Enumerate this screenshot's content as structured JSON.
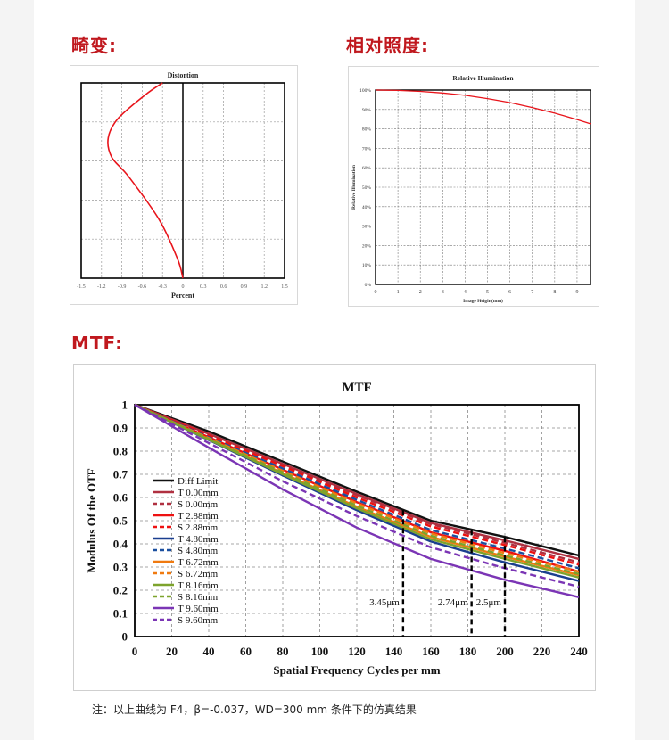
{
  "headings": {
    "distortion": "畸变:",
    "relative_illumination": "相对照度:",
    "mtf": "MTF:"
  },
  "note": "注：以上曲线为 F4，β=-0.037，WD=300 mm 条件下的仿真结果",
  "chart_data": [
    {
      "id": "distortion",
      "type": "line",
      "title": "Distortion",
      "xlabel": "Percent",
      "ylabel": "",
      "xlim": [
        -1.5,
        1.5
      ],
      "x_ticks": [
        "-1.5",
        "-1.2",
        "-0.9",
        "-0.6",
        "-0.3",
        "0",
        "0.3",
        "0.6",
        "0.9",
        "1.2",
        "1.5"
      ],
      "ylim": [
        0,
        1
      ],
      "grid": true,
      "series": [
        {
          "color": "#e8141b",
          "x": [
            0,
            -0.08,
            -0.35,
            -0.8,
            -1.05,
            -1.1,
            -0.95,
            -0.55,
            -0.3
          ],
          "y": [
            0,
            0.1,
            0.3,
            0.52,
            0.62,
            0.72,
            0.82,
            0.94,
            1.0
          ]
        }
      ]
    },
    {
      "id": "relative-illumination",
      "type": "line",
      "title": "Relative Illumination",
      "xlabel": "Image Height(mm)",
      "ylabel": "Relative Illumination",
      "xlim": [
        0,
        9.6
      ],
      "ylim": [
        0,
        100
      ],
      "x_ticks": [
        "0",
        "1",
        "2",
        "3",
        "4",
        "5",
        "6",
        "7",
        "8",
        "9"
      ],
      "y_ticks": [
        "0%",
        "10%",
        "20%",
        "30%",
        "40%",
        "50%",
        "60%",
        "70%",
        "80%",
        "90%",
        "100%"
      ],
      "grid": true,
      "series": [
        {
          "color": "#e8141b",
          "x": [
            0,
            1,
            2,
            3,
            4,
            5,
            6,
            7,
            8,
            9,
            9.6
          ],
          "y": [
            100,
            99.8,
            99.3,
            98.5,
            97.3,
            95.6,
            93.6,
            91,
            88.1,
            84.8,
            82.6
          ]
        }
      ]
    },
    {
      "id": "mtf",
      "type": "line",
      "title": "MTF",
      "xlabel": "Spatial Frequency Cycles per mm",
      "ylabel": "Modulus Of the OTF",
      "xlim": [
        0,
        240
      ],
      "ylim": [
        0,
        1
      ],
      "x_ticks": [
        "0",
        "20",
        "40",
        "60",
        "80",
        "100",
        "120",
        "140",
        "160",
        "180",
        "200",
        "220",
        "240"
      ],
      "y_ticks": [
        "0",
        "0.1",
        "0.2",
        "0.3",
        "0.4",
        "0.5",
        "0.6",
        "0.7",
        "0.8",
        "0.9",
        "1"
      ],
      "grid": true,
      "legend_position": "left",
      "x": [
        0,
        40,
        80,
        120,
        160,
        200,
        240
      ],
      "series": [
        {
          "name": "Diff Limit",
          "color": "#111111",
          "dash": false,
          "values": [
            1,
            0.885,
            0.755,
            0.625,
            0.5,
            0.43,
            0.35
          ]
        },
        {
          "name": "T 0.00mm",
          "color": "#b03040",
          "dash": false,
          "values": [
            1,
            0.875,
            0.745,
            0.615,
            0.49,
            0.415,
            0.335
          ]
        },
        {
          "name": "S 0.00mm",
          "color": "#b03040",
          "dash": true,
          "values": [
            1,
            0.872,
            0.74,
            0.61,
            0.485,
            0.405,
            0.32
          ]
        },
        {
          "name": "T 2.88mm",
          "color": "#ee1111",
          "dash": false,
          "values": [
            1,
            0.86,
            0.72,
            0.58,
            0.45,
            0.37,
            0.28
          ]
        },
        {
          "name": "S 2.88mm",
          "color": "#ee1111",
          "dash": true,
          "values": [
            1,
            0.868,
            0.735,
            0.6,
            0.475,
            0.395,
            0.31
          ]
        },
        {
          "name": "T 4.80mm",
          "color": "#1a3f8f",
          "dash": false,
          "values": [
            1,
            0.848,
            0.695,
            0.545,
            0.41,
            0.32,
            0.24
          ]
        },
        {
          "name": "S 4.80mm",
          "color": "#1a4f9f",
          "dash": true,
          "values": [
            1,
            0.86,
            0.725,
            0.59,
            0.46,
            0.38,
            0.295
          ]
        },
        {
          "name": "T 6.72mm",
          "color": "#f07a10",
          "dash": false,
          "values": [
            1,
            0.852,
            0.705,
            0.56,
            0.43,
            0.345,
            0.265
          ]
        },
        {
          "name": "S 6.72mm",
          "color": "#f07a10",
          "dash": true,
          "values": [
            1,
            0.856,
            0.715,
            0.575,
            0.445,
            0.36,
            0.28
          ]
        },
        {
          "name": "T 8.16mm",
          "color": "#7da32c",
          "dash": false,
          "values": [
            1,
            0.85,
            0.7,
            0.553,
            0.42,
            0.335,
            0.255
          ]
        },
        {
          "name": "S 8.16mm",
          "color": "#7da32c",
          "dash": true,
          "values": [
            1,
            0.852,
            0.708,
            0.565,
            0.435,
            0.35,
            0.27
          ]
        },
        {
          "name": "T 9.60mm",
          "color": "#7b35b5",
          "dash": false,
          "values": [
            1,
            0.815,
            0.635,
            0.47,
            0.335,
            0.245,
            0.17
          ]
        },
        {
          "name": "S 9.60mm",
          "color": "#7b35b5",
          "dash": true,
          "values": [
            1,
            0.835,
            0.67,
            0.52,
            0.385,
            0.295,
            0.215
          ]
        }
      ],
      "annotations": [
        {
          "label": "3.45μm",
          "x": 145,
          "y_top": 0.545
        },
        {
          "label": "2.74μm",
          "x": 182,
          "y_top": 0.46
        },
        {
          "label": "2.5μm",
          "x": 200,
          "y_top": 0.43
        }
      ]
    }
  ]
}
